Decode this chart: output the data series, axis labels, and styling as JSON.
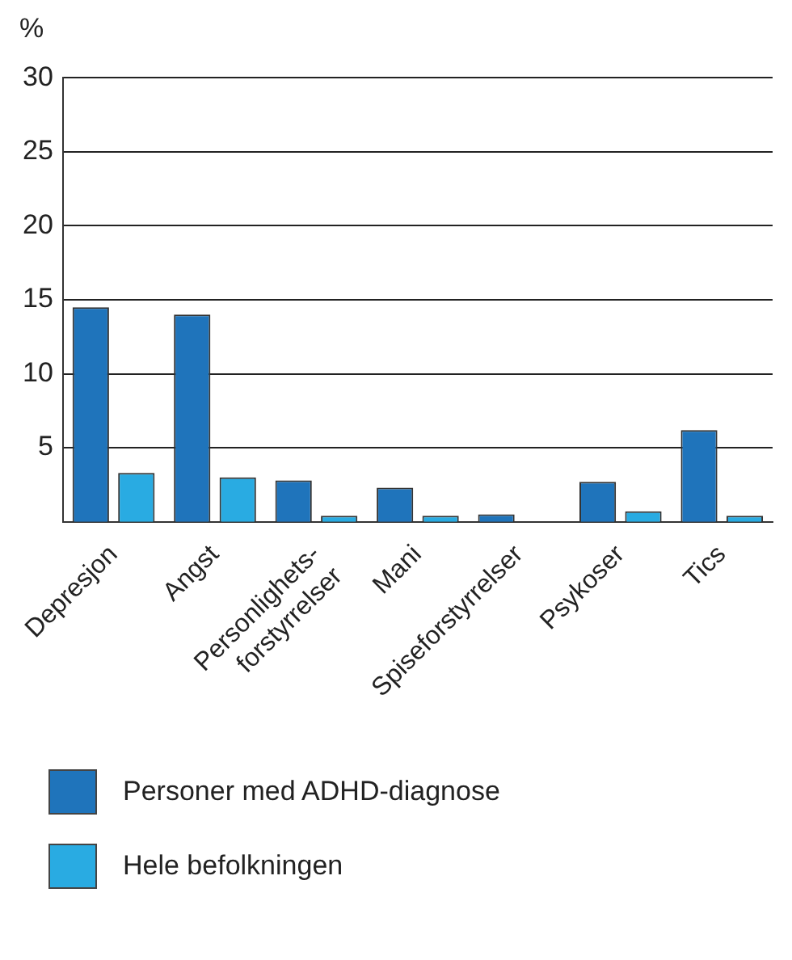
{
  "chart_data": {
    "type": "bar",
    "ylabel": "%",
    "categories": [
      "Depresjon",
      "Angst",
      "Personlighets-\nforstyrrelser",
      "Mani",
      "Spiseforstyrrelser",
      "Psykoser",
      "Tics"
    ],
    "series": [
      {
        "name": "Personer med ADHD-diagnose",
        "color": "#1f74bb",
        "values": [
          14.5,
          14.0,
          2.8,
          2.3,
          0.5,
          2.7,
          6.2
        ]
      },
      {
        "name": "Hele befolkningen",
        "color": "#29abe2",
        "values": [
          3.3,
          3.0,
          0.4,
          0.4,
          null,
          0.7,
          0.4
        ]
      }
    ],
    "ylim": [
      0,
      30
    ],
    "yticks": [
      5,
      10,
      15,
      20,
      25,
      30
    ],
    "grid": "y",
    "legend": "bottom"
  }
}
